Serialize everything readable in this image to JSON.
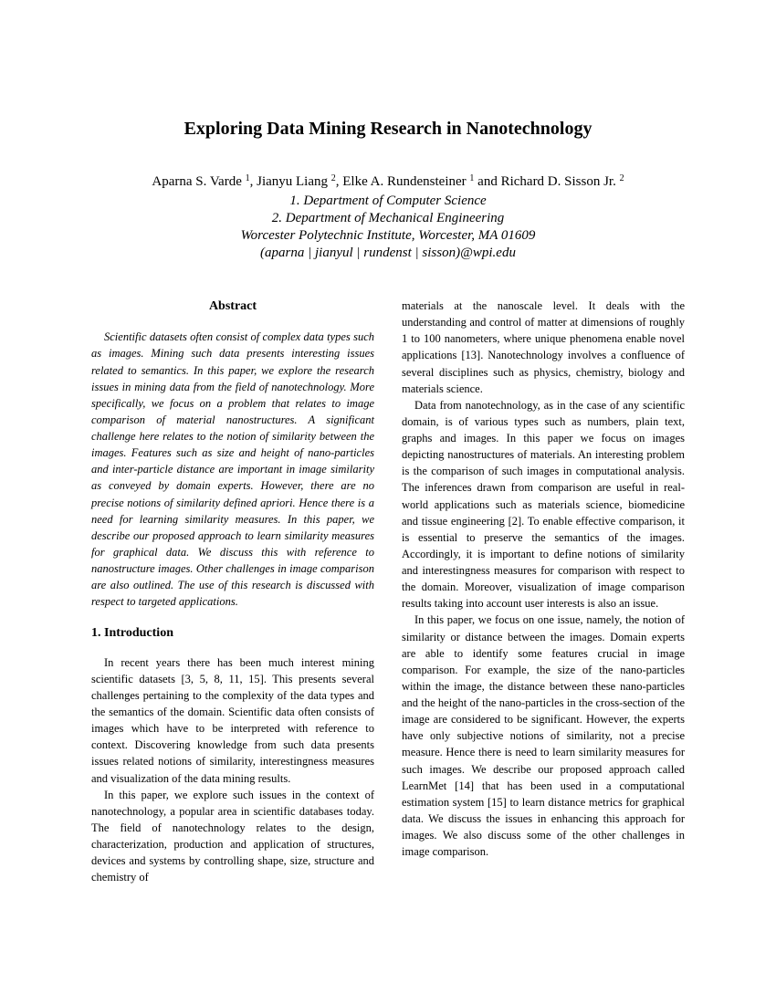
{
  "title": "Exploring Data Mining Research in Nanotechnology",
  "authors_line": "Aparna S. Varde ¹, Jianyu Liang ², Elke A. Rundensteiner ¹ and Richard D. Sisson Jr. ²",
  "author1": "Aparna S. Varde",
  "author2": "Jianyu Liang",
  "author3": "Elke A. Rundensteiner",
  "author4": "Richard D. Sisson Jr.",
  "aff1": "1. Department of Computer Science",
  "aff2": "2. Department of Mechanical Engineering",
  "aff3": "Worcester Polytechnic Institute, Worcester, MA 01609",
  "aff4": "(aparna | jianyul | rundenst | sisson)@wpi.edu",
  "abstract_heading": "Abstract",
  "abstract": "Scientific datasets often consist of complex data types such as images. Mining such data presents interesting issues related to semantics. In this paper, we explore the research issues in mining data from the field of nanotechnology. More specifically, we focus on a problem that relates to image comparison of material nanostructures. A significant challenge here relates to the notion of similarity between the images. Features such as size and height of nano-particles and inter-particle distance are important in image similarity as conveyed by domain experts. However, there are no precise notions of similarity defined apriori. Hence there is a need for learning similarity measures. In this paper, we describe our proposed approach to learn similarity measures for graphical data. We discuss this with reference to nanostructure images. Other challenges in image comparison are also outlined. The use of this research is discussed with respect to targeted applications.",
  "section1_heading": "1. Introduction",
  "para1": "In recent years there has been much interest mining scientific datasets [3, 5, 8, 11, 15]. This presents several challenges pertaining to the complexity of the data types and the semantics of the domain. Scientific data often consists of images which have to be interpreted with reference to context. Discovering knowledge from such data presents issues related notions of similarity, interestingness measures and visualization of the data mining results.",
  "para2": "In this paper, we explore such issues in the context of nanotechnology, a popular area in scientific databases today. The field of nanotechnology relates to the design, characterization, production and application of structures, devices and systems by controlling shape, size, structure and chemistry of",
  "para3": "materials at the nanoscale level. It deals with the understanding and control of matter at dimensions of roughly 1 to 100 nanometers, where unique phenomena enable novel applications [13]. Nanotechnology involves a confluence of several disciplines such as physics, chemistry, biology and materials science.",
  "para4": "Data from nanotechnology, as in the case of any scientific domain, is of various types such as numbers, plain text, graphs and images. In this paper we focus on images depicting nanostructures of materials. An interesting problem is the comparison of such images in computational analysis. The inferences drawn from comparison are useful in real-world applications such as materials science, biomedicine and tissue engineering [2]. To enable effective comparison, it is essential to preserve the semantics of the images. Accordingly, it is important to define notions of similarity and interestingness measures for comparison with respect to the domain. Moreover, visualization of image comparison results taking into account user interests is also an issue.",
  "para5": "In this paper, we focus on one issue, namely, the notion of similarity or distance between the images. Domain experts are able to identify some features crucial in image comparison. For example, the size of the nano-particles within the image, the distance between these nano-particles and the height of the nano-particles in the cross-section of the image are considered to be significant. However, the experts have only subjective notions of similarity, not a precise measure. Hence there is need to learn similarity measures for such images. We describe our proposed approach called LearnMet [14] that has been used in a computational estimation system [15] to learn distance metrics for graphical data. We discuss the issues in enhancing this approach for images. We also discuss some of the other challenges in image comparison."
}
